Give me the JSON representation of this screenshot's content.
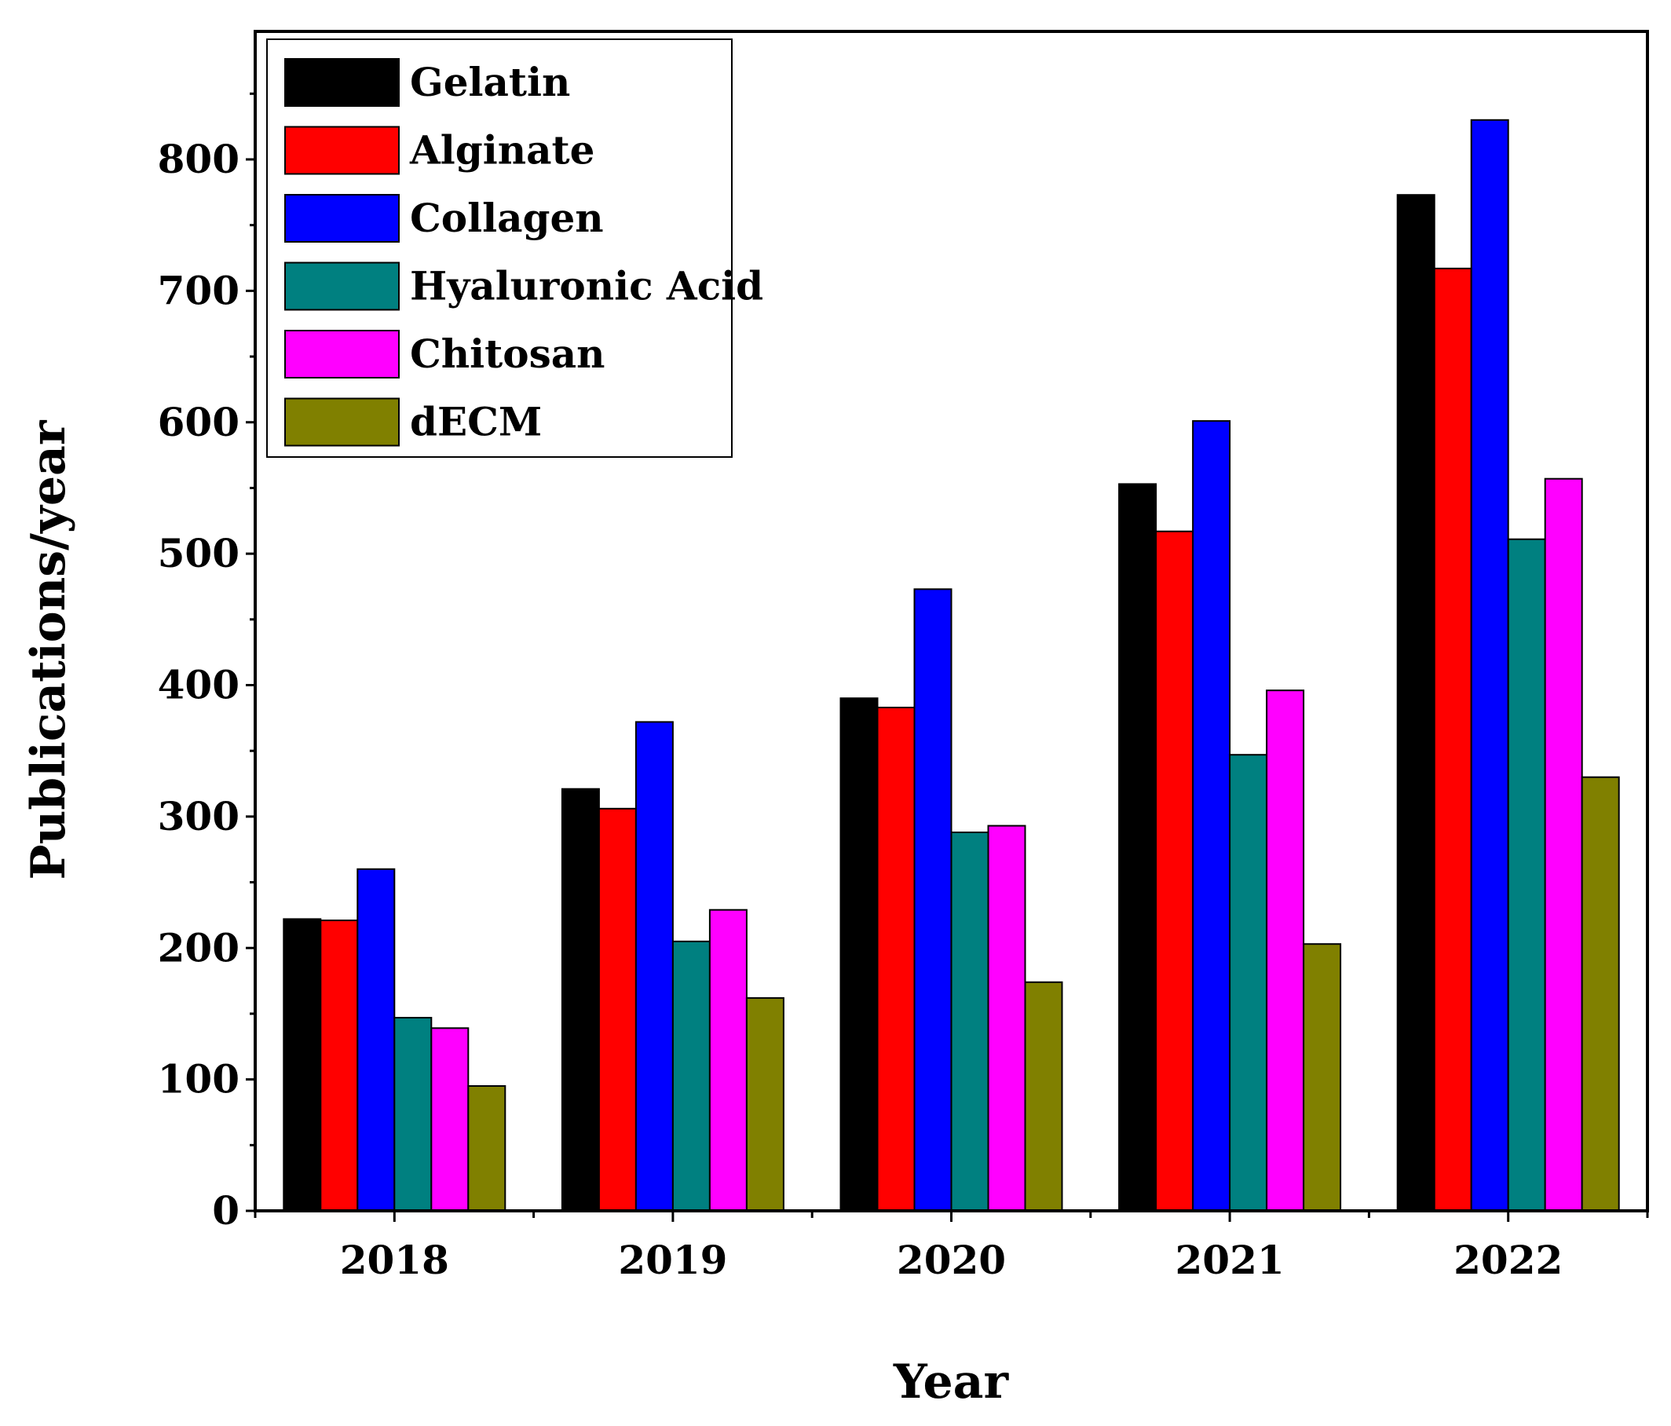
{
  "chart_data": {
    "type": "bar",
    "title": "",
    "xlabel": "Year",
    "ylabel": "Publications/year",
    "categories": [
      "2018",
      "2019",
      "2020",
      "2021",
      "2022"
    ],
    "ylim": [
      0,
      900
    ],
    "yticks": [
      0,
      100,
      200,
      300,
      400,
      500,
      600,
      700,
      800
    ],
    "ytick_labels": [
      "0",
      "100",
      "200",
      "300",
      "400",
      "500",
      "600",
      "700",
      "800"
    ],
    "grid": false,
    "legend_position": "top-left",
    "series": [
      {
        "name": "Gelatin",
        "color": "#000000",
        "values": [
          222,
          321,
          390,
          553,
          773
        ]
      },
      {
        "name": "Alginate",
        "color": "#ff0000",
        "values": [
          221,
          306,
          383,
          517,
          717
        ]
      },
      {
        "name": "Collagen",
        "color": "#0000ff",
        "values": [
          260,
          372,
          473,
          601,
          830
        ]
      },
      {
        "name": "Hyaluronic Acid",
        "color": "#008080",
        "values": [
          147,
          205,
          288,
          347,
          511
        ]
      },
      {
        "name": "Chitosan",
        "color": "#ff00ff",
        "values": [
          139,
          229,
          293,
          396,
          557
        ]
      },
      {
        "name": "dECM",
        "color": "#808000",
        "values": [
          95,
          162,
          174,
          203,
          330
        ]
      }
    ]
  }
}
